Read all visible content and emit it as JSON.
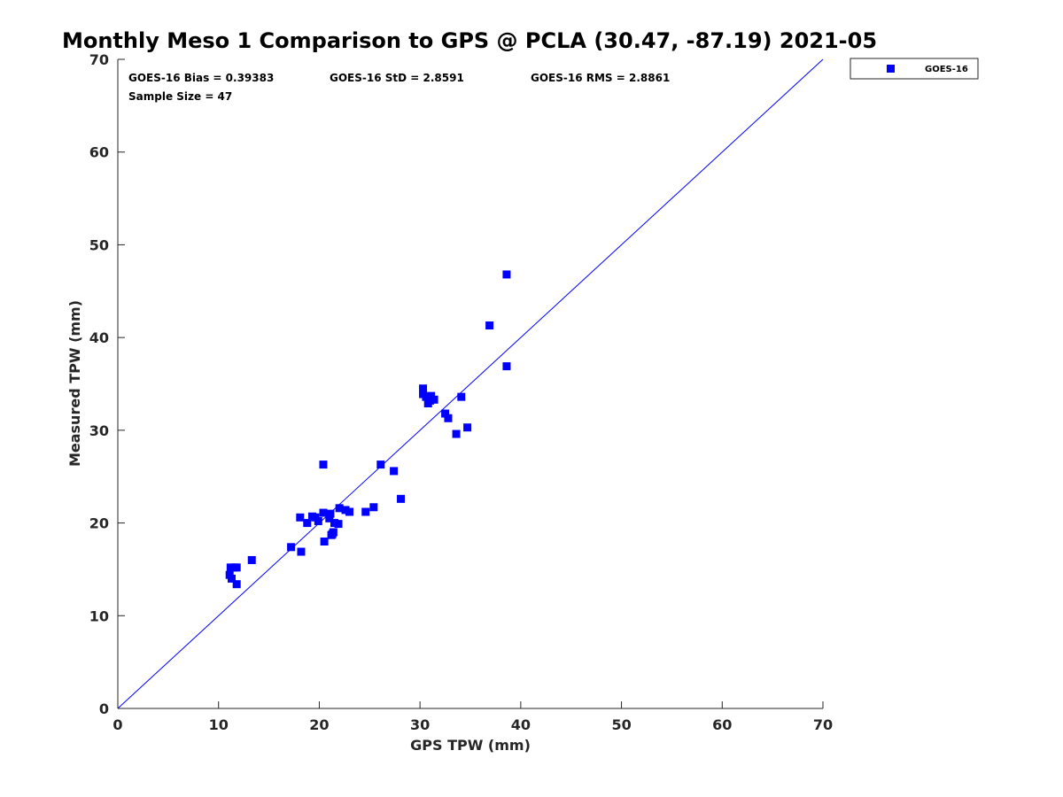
{
  "chart_data": {
    "type": "scatter",
    "title": "Monthly Meso 1 Comparison to GPS @ PCLA (30.47, -87.19) 2021-05",
    "xlabel": "GPS TPW (mm)",
    "ylabel": "Measured TPW (mm)",
    "xlim": [
      0,
      70
    ],
    "ylim": [
      0,
      70
    ],
    "xticks": [
      "0",
      "10",
      "20",
      "30",
      "40",
      "50",
      "60",
      "70"
    ],
    "yticks": [
      "0",
      "10",
      "20",
      "30",
      "40",
      "50",
      "60",
      "70"
    ],
    "grid": false,
    "legend_position": "top-right outside",
    "reference_line": {
      "from": [
        0,
        0
      ],
      "to": [
        70,
        70
      ],
      "color": "#0000ff"
    },
    "annotations": {
      "bias": "GOES-16 Bias = 0.39383",
      "std": "GOES-16 StD = 2.8591",
      "rms": "GOES-16 RMS = 2.8861",
      "sample_size": "Sample Size = 47"
    },
    "series": [
      {
        "name": "GOES-16",
        "color": "#0000ff",
        "marker": "square",
        "points": [
          [
            11.1,
            14.4
          ],
          [
            11.2,
            15.2
          ],
          [
            11.3,
            14.0
          ],
          [
            11.6,
            15.2
          ],
          [
            11.8,
            15.2
          ],
          [
            11.8,
            13.4
          ],
          [
            13.3,
            16.0
          ],
          [
            17.2,
            17.4
          ],
          [
            18.1,
            20.6
          ],
          [
            18.2,
            16.9
          ],
          [
            18.8,
            20.0
          ],
          [
            19.3,
            20.7
          ],
          [
            19.6,
            20.6
          ],
          [
            19.9,
            20.2
          ],
          [
            20.4,
            21.1
          ],
          [
            20.4,
            26.3
          ],
          [
            20.5,
            18.0
          ],
          [
            21.0,
            20.5
          ],
          [
            21.1,
            21.0
          ],
          [
            21.2,
            18.7
          ],
          [
            21.4,
            19.0
          ],
          [
            21.5,
            20.0
          ],
          [
            21.9,
            19.9
          ],
          [
            22.0,
            21.6
          ],
          [
            22.6,
            21.4
          ],
          [
            23.0,
            21.2
          ],
          [
            24.6,
            21.2
          ],
          [
            25.4,
            21.7
          ],
          [
            26.1,
            26.3
          ],
          [
            27.4,
            25.6
          ],
          [
            28.1,
            22.6
          ],
          [
            30.3,
            34.5
          ],
          [
            30.3,
            33.9
          ],
          [
            30.6,
            33.6
          ],
          [
            30.8,
            32.9
          ],
          [
            31.1,
            33.7
          ],
          [
            31.4,
            33.3
          ],
          [
            32.5,
            31.8
          ],
          [
            32.8,
            31.3
          ],
          [
            33.6,
            29.6
          ],
          [
            34.1,
            33.6
          ],
          [
            34.7,
            30.3
          ],
          [
            36.9,
            41.3
          ],
          [
            38.6,
            46.8
          ],
          [
            38.6,
            36.9
          ],
          [
            31.0,
            33.2
          ],
          [
            21.3,
            18.8
          ]
        ]
      }
    ]
  }
}
